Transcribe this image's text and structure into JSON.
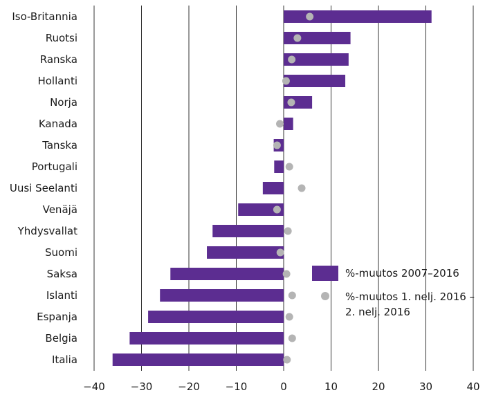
{
  "chart_data": {
    "type": "bar",
    "orientation": "horizontal",
    "categories": [
      "Iso-Britannia",
      "Ruotsi",
      "Ranska",
      "Hollanti",
      "Norja",
      "Kanada",
      "Tanska",
      "Portugali",
      "Uusi Seelanti",
      "Venäjä",
      "Yhdysvallat",
      "Suomi",
      "Saksa",
      "Islanti",
      "Espanja",
      "Belgia",
      "Italia"
    ],
    "series": [
      {
        "name": "%-muutos 2007–2016",
        "kind": "bar",
        "values": [
          31.2,
          14.1,
          13.7,
          13.0,
          6.0,
          2.0,
          -2.1,
          -2.0,
          -4.4,
          -9.6,
          -15.0,
          -16.2,
          -23.9,
          -26.1,
          -28.6,
          -32.5,
          -36.1
        ]
      },
      {
        "name": "%-muutos 1. nelj. 2016 – 2. nelj. 2016",
        "kind": "dot",
        "values": [
          5.5,
          2.9,
          1.7,
          0.5,
          1.6,
          -0.8,
          -1.4,
          1.2,
          3.8,
          -1.4,
          0.9,
          -0.7,
          0.6,
          1.8,
          1.2,
          1.8,
          0.7
        ]
      }
    ],
    "xlim": [
      -40,
      40
    ],
    "xticks": [
      -40,
      -30,
      -20,
      -10,
      0,
      10,
      20,
      30,
      40
    ],
    "xtick_labels": [
      "−40",
      "−30",
      "−20",
      "−10",
      "0",
      "10",
      "20",
      "30",
      "40"
    ],
    "grid": "vertical",
    "legend_position": "lower-right",
    "colors": {
      "bar": "#5c2d91",
      "dot": "#b4b4b4",
      "grid": "#333333"
    }
  }
}
